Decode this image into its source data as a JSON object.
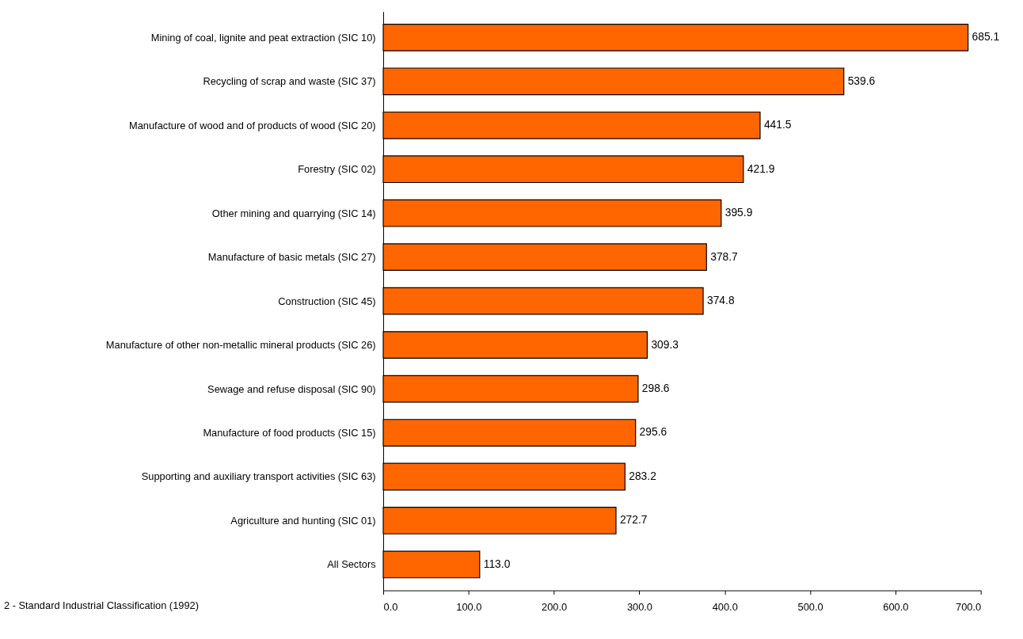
{
  "chart_data": {
    "type": "bar",
    "orientation": "horizontal",
    "categories": [
      "Mining of coal, lignite and peat extraction (SIC 10)",
      "Recycling of scrap and waste (SIC 37)",
      "Manufacture of wood and of products of wood (SIC 20)",
      "Forestry (SIC 02)",
      "Other mining and quarrying (SIC 14)",
      "Manufacture of basic metals (SIC 27)",
      "Construction (SIC 45)",
      "Manufacture of other non-metallic mineral products (SIC 26)",
      "Sewage and refuse disposal (SIC 90)",
      "Manufacture of food products (SIC 15)",
      "Supporting and auxiliary transport activities (SIC 63)",
      "Agriculture and hunting (SIC 01)",
      "All Sectors"
    ],
    "values": [
      685.1,
      539.6,
      441.5,
      421.9,
      395.9,
      378.7,
      374.8,
      309.3,
      298.6,
      295.6,
      283.2,
      272.7,
      113.0
    ],
    "value_labels": [
      "685.1",
      "539.6",
      "441.5",
      "421.9",
      "395.9",
      "378.7",
      "374.8",
      "309.3",
      "298.6",
      "295.6",
      "283.2",
      "272.7",
      "113.0"
    ],
    "color": "#ff6600",
    "xlim": [
      0,
      700
    ],
    "xticks": [
      {
        "value": 0,
        "label": "0.0"
      },
      {
        "value": 100,
        "label": "100.0"
      },
      {
        "value": 200,
        "label": "200.0"
      },
      {
        "value": 300,
        "label": "300.0"
      },
      {
        "value": 400,
        "label": "400.0"
      },
      {
        "value": 500,
        "label": "500.0"
      },
      {
        "value": 600,
        "label": "600.0"
      },
      {
        "value": 700,
        "label": "700.0"
      }
    ],
    "grid": false,
    "annotations": [
      "2 - Standard Industrial Classification (1992)"
    ]
  }
}
